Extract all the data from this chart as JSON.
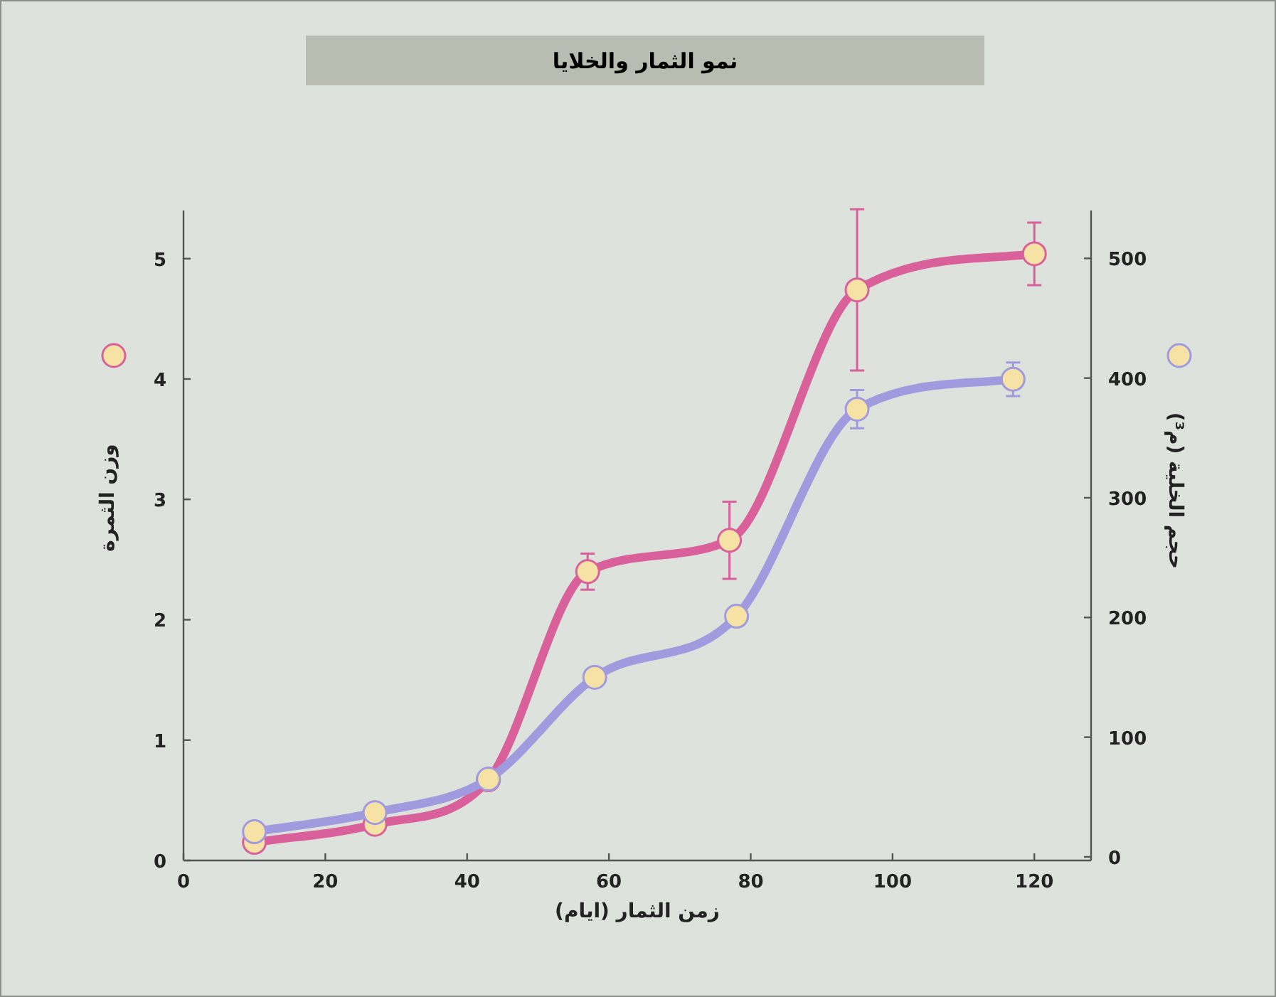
{
  "chart_data": {
    "type": "line",
    "title": "نمو الثمار والخلايا",
    "xlabel": "زمن الثمار (ايام)",
    "ylabel": "وزن الثمرة",
    "y2label": "حجم الخلية (م³)",
    "xlim": [
      0,
      128
    ],
    "xticks": [
      0,
      20,
      40,
      60,
      80,
      100,
      120
    ],
    "ylim": [
      0,
      5.4
    ],
    "yticks": [
      0,
      1,
      2,
      3,
      4,
      5
    ],
    "y2lim": [
      -3,
      540
    ],
    "y2ticks": [
      0,
      100,
      200,
      300,
      400,
      500
    ],
    "marker": "circle",
    "series": [
      {
        "color": "#d9609a",
        "x": [
          10,
          27,
          43,
          57,
          77,
          95,
          120
        ],
        "values": [
          0.15,
          0.3,
          0.67,
          2.4,
          2.66,
          4.74,
          5.04
        ],
        "errors": [
          null,
          null,
          null,
          0.15,
          0.32,
          0.67,
          0.26
        ]
      },
      {
        "color": "#a09ade",
        "axis": "y2",
        "x": [
          10,
          27,
          43,
          58,
          78,
          95,
          117
        ],
        "values": [
          21,
          37,
          65,
          150,
          201,
          374,
          399
        ],
        "errors": [
          null,
          null,
          null,
          null,
          null,
          16,
          14
        ]
      }
    ]
  }
}
